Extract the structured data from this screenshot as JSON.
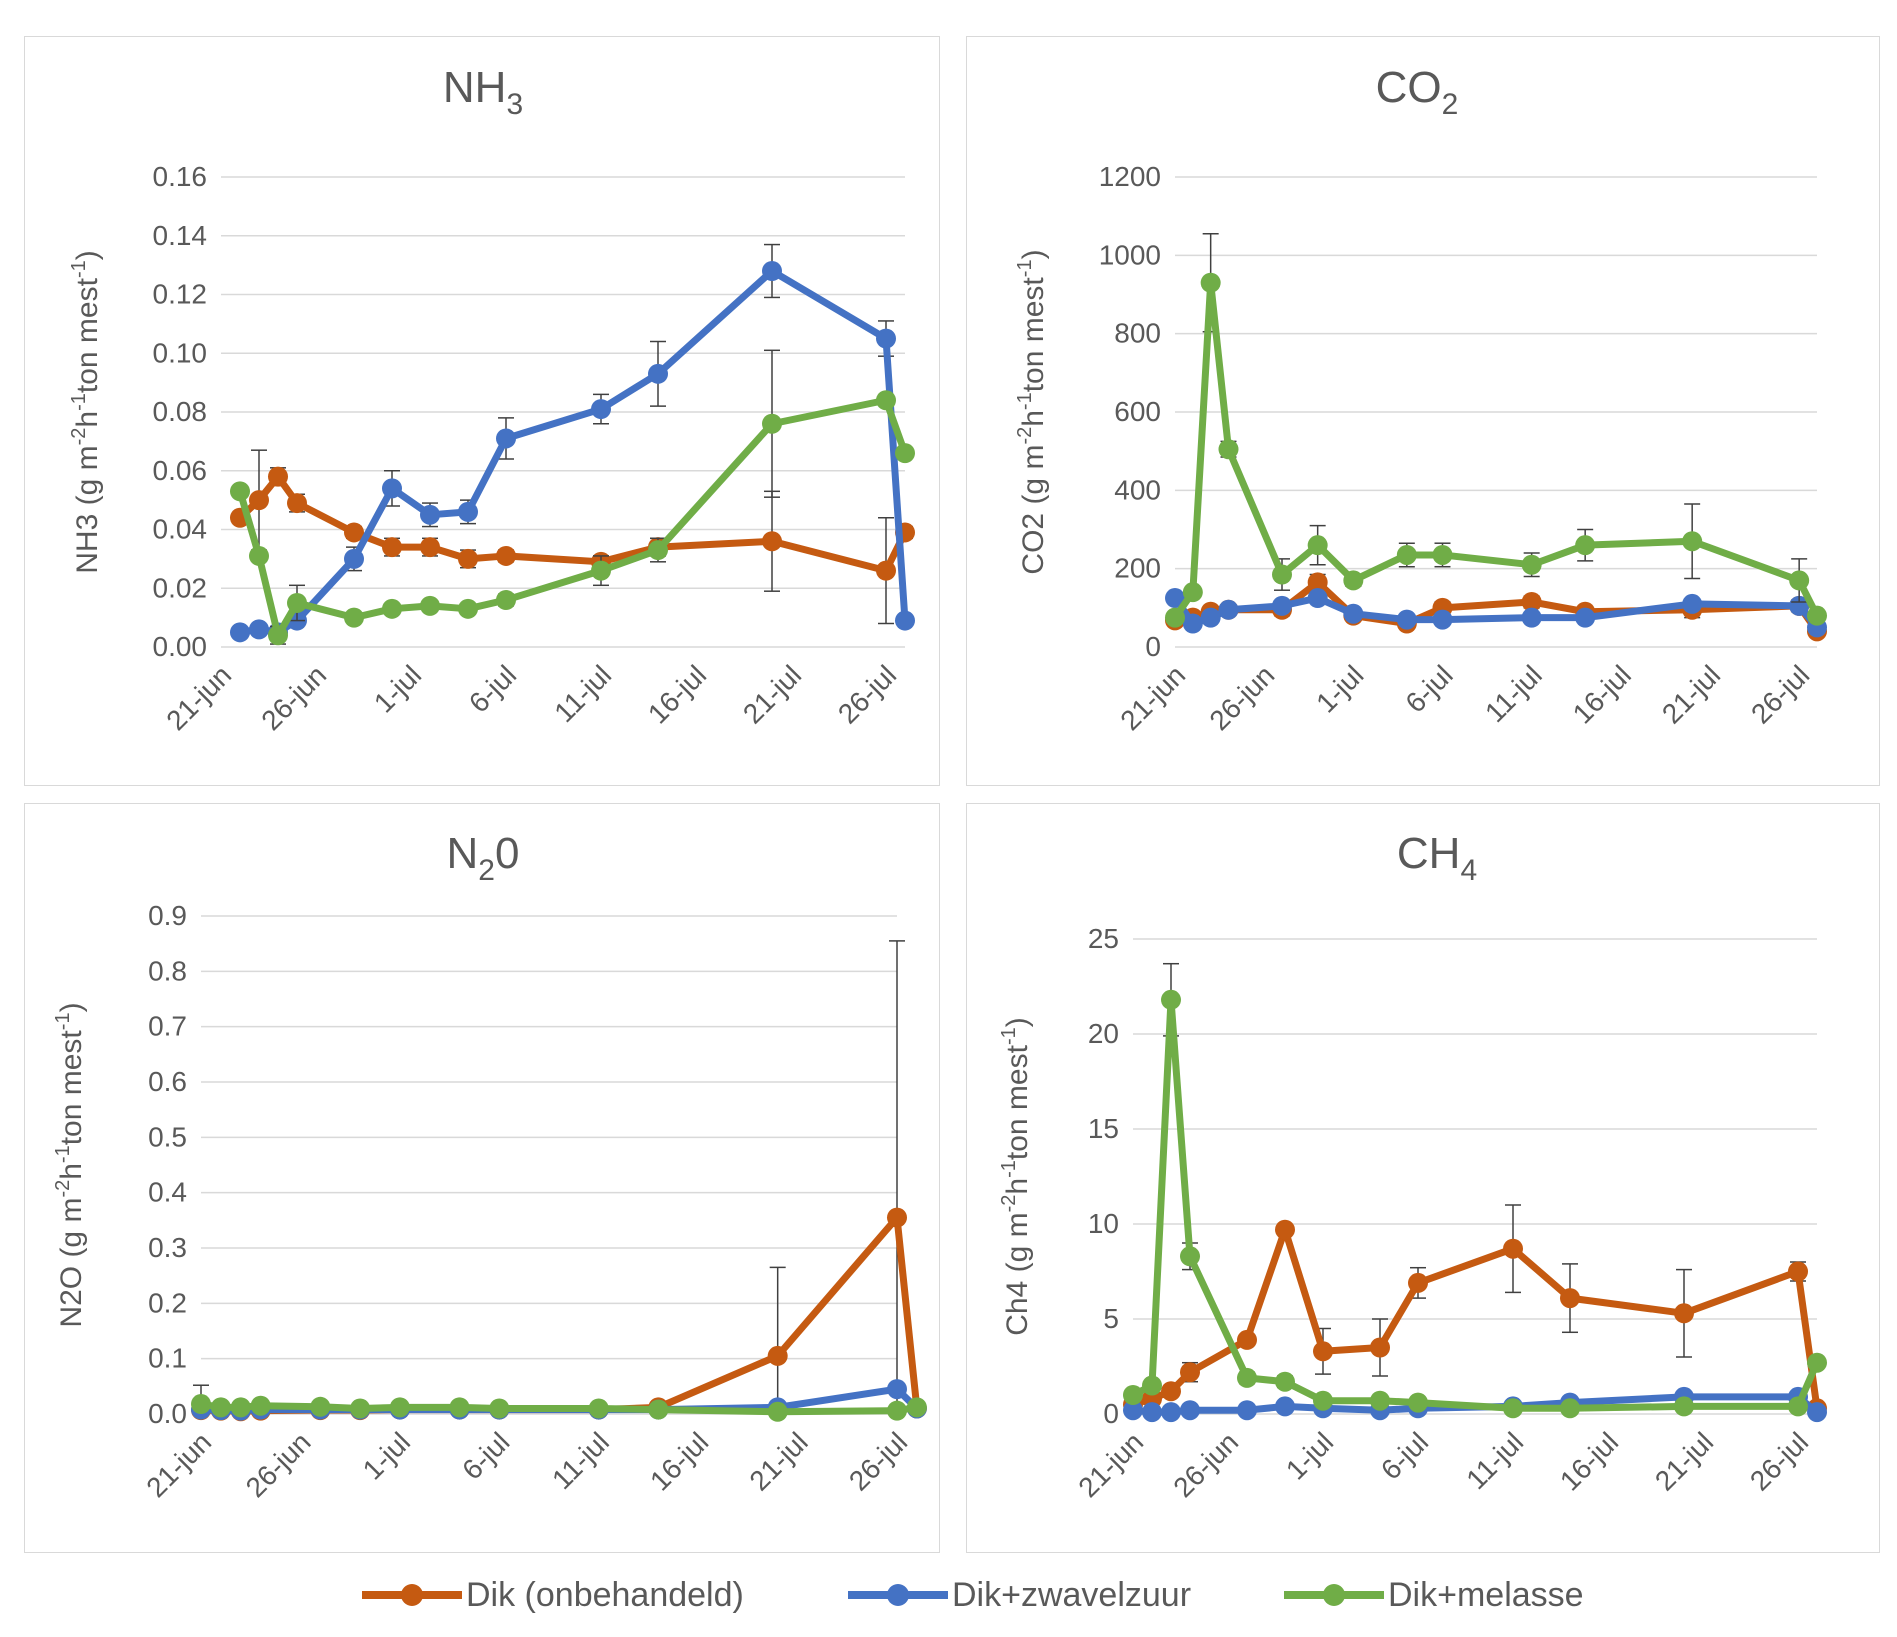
{
  "colors": {
    "orange": "#C55A11",
    "blue": "#4472C4",
    "green": "#70AD47",
    "grid": "#d9d9d9",
    "text": "#595959"
  },
  "legend": [
    {
      "name": "Dik (onbehandeld)",
      "color": "#C55A11"
    },
    {
      "name": "Dik+zwavelzuur",
      "color": "#4472C4"
    },
    {
      "name": "Dik+melasse",
      "color": "#70AD47"
    }
  ],
  "chart_data": [
    {
      "type": "line",
      "title": "NH3",
      "title_main": "NH",
      "title_sub": "3",
      "ylabel_parts": [
        "NH3 (g m",
        "-2",
        "h",
        "-1",
        "ton mest",
        "-1",
        ")"
      ],
      "xlabel": "",
      "x_ticks": [
        "21-jun",
        "26-jun",
        "1-jul",
        "6-jul",
        "11-jul",
        "16-jul",
        "21-jul",
        "26-jul"
      ],
      "x_range_days": [
        0,
        36
      ],
      "ylim": [
        0,
        0.16
      ],
      "y_ticks": [
        "0.00",
        "0.02",
        "0.04",
        "0.06",
        "0.08",
        "0.10",
        "0.12",
        "0.14",
        "0.16"
      ],
      "grid": true,
      "series": [
        {
          "name": "Dik (onbehandeld)",
          "color": "#C55A11",
          "x": [
            "22-jun",
            "23-jun",
            "24-jun",
            "25-jun",
            "28-jun",
            "30-jun",
            "2-jul",
            "4-jul",
            "6-jul",
            "11-jul",
            "14-jul",
            "20-jul",
            "26-jul",
            "27-jul"
          ],
          "y": [
            0.044,
            0.05,
            0.058,
            0.049,
            0.039,
            0.034,
            0.034,
            0.03,
            0.031,
            0.029,
            0.034,
            0.036,
            0.026,
            0.039
          ],
          "err": [
            0,
            0.017,
            0.003,
            0.003,
            0.002,
            0.003,
            0.003,
            0.003,
            0.002,
            0.002,
            0.003,
            0.017,
            0.018,
            0.002
          ]
        },
        {
          "name": "Dik+zwavelzuur",
          "color": "#4472C4",
          "x": [
            "22-jun",
            "23-jun",
            "24-jun",
            "25-jun",
            "28-jun",
            "30-jun",
            "2-jul",
            "4-jul",
            "6-jul",
            "11-jul",
            "14-jul",
            "20-jul",
            "26-jul",
            "27-jul"
          ],
          "y": [
            0.005,
            0.006,
            0.005,
            0.009,
            0.03,
            0.054,
            0.045,
            0.046,
            0.071,
            0.081,
            0.093,
            0.128,
            0.105,
            0.009
          ],
          "err": [
            0,
            0,
            0,
            0,
            0.004,
            0.006,
            0.004,
            0.004,
            0.007,
            0.005,
            0.011,
            0.009,
            0.006,
            0
          ]
        },
        {
          "name": "Dik+melasse",
          "color": "#70AD47",
          "x": [
            "22-jun",
            "23-jun",
            "24-jun",
            "25-jun",
            "28-jun",
            "30-jun",
            "2-jul",
            "4-jul",
            "6-jul",
            "11-jul",
            "14-jul",
            "20-jul",
            "26-jul",
            "27-jul"
          ],
          "y": [
            0.053,
            0.031,
            0.004,
            0.015,
            0.01,
            0.013,
            0.014,
            0.013,
            0.016,
            0.026,
            0.033,
            0.076,
            0.084,
            0.066
          ],
          "err": [
            0,
            0,
            0.003,
            0.006,
            0,
            0,
            0,
            0,
            0.002,
            0.005,
            0.004,
            0.025,
            0,
            0
          ]
        }
      ]
    },
    {
      "type": "line",
      "title": "CO2",
      "title_main": "CO",
      "title_sub": "2",
      "ylabel_parts": [
        "CO2 (g m",
        "-2",
        "h",
        "-1",
        "ton mest",
        "-1",
        ")"
      ],
      "xlabel": "",
      "x_ticks": [
        "21-jun",
        "26-jun",
        "1-jul",
        "6-jul",
        "11-jul",
        "16-jul",
        "21-jul",
        "26-jul"
      ],
      "x_range_days": [
        0,
        36
      ],
      "ylim": [
        0,
        1200
      ],
      "y_ticks": [
        "0",
        "200",
        "400",
        "600",
        "800",
        "1000",
        "1200"
      ],
      "grid": true,
      "series": [
        {
          "name": "Dik (onbehandeld)",
          "color": "#C55A11",
          "x": [
            "21-jun",
            "22-jun",
            "23-jun",
            "24-jun",
            "27-jun",
            "29-jun",
            "1-jul",
            "4-jul",
            "6-jul",
            "11-jul",
            "14-jul",
            "20-jul",
            "26-jul",
            "27-jul"
          ],
          "y": [
            68,
            75,
            90,
            95,
            95,
            165,
            80,
            60,
            100,
            115,
            90,
            95,
            105,
            40
          ],
          "err": [
            0,
            0,
            0,
            0,
            15,
            20,
            10,
            10,
            15,
            15,
            10,
            20,
            15,
            0
          ]
        },
        {
          "name": "Dik+zwavelzuur",
          "color": "#4472C4",
          "x": [
            "21-jun",
            "22-jun",
            "23-jun",
            "24-jun",
            "27-jun",
            "29-jun",
            "1-jul",
            "4-jul",
            "6-jul",
            "11-jul",
            "14-jul",
            "20-jul",
            "26-jul",
            "27-jul"
          ],
          "y": [
            125,
            60,
            75,
            95,
            105,
            125,
            85,
            70,
            70,
            75,
            75,
            110,
            105,
            50
          ],
          "err": [
            0,
            0,
            0,
            0,
            0,
            0,
            0,
            0,
            0,
            0,
            0,
            0,
            0,
            0
          ]
        },
        {
          "name": "Dik+melasse",
          "color": "#70AD47",
          "x": [
            "21-jun",
            "22-jun",
            "23-jun",
            "24-jun",
            "27-jun",
            "29-jun",
            "1-jul",
            "4-jul",
            "6-jul",
            "11-jul",
            "14-jul",
            "20-jul",
            "26-jul",
            "27-jul"
          ],
          "y": [
            75,
            140,
            930,
            505,
            185,
            260,
            170,
            235,
            235,
            210,
            260,
            270,
            170,
            80
          ],
          "err": [
            0,
            10,
            125,
            20,
            40,
            50,
            15,
            30,
            30,
            30,
            40,
            95,
            55,
            0
          ]
        }
      ]
    },
    {
      "type": "line",
      "title": "N20",
      "title_main": "N",
      "title_sub": "2",
      "title_tail": "0",
      "ylabel_parts": [
        "N2O (g m",
        "-2",
        "h",
        "-1",
        "ton mest",
        "-1",
        ")"
      ],
      "xlabel": "",
      "x_ticks": [
        "21-jun",
        "26-jun",
        "1-jul",
        "6-jul",
        "11-jul",
        "16-jul",
        "21-jul",
        "26-jul"
      ],
      "x_range_days": [
        0,
        35
      ],
      "ylim": [
        0,
        0.9
      ],
      "y_ticks": [
        "0.0",
        "0.1",
        "0.2",
        "0.3",
        "0.4",
        "0.5",
        "0.6",
        "0.7",
        "0.8",
        "0.9"
      ],
      "grid": true,
      "series": [
        {
          "name": "Dik (onbehandeld)",
          "color": "#C55A11",
          "x": [
            "21-jun",
            "22-jun",
            "23-jun",
            "24-jun",
            "27-jun",
            "29-jun",
            "1-jul",
            "4-jul",
            "6-jul",
            "11-jul",
            "14-jul",
            "20-jul",
            "26-jul",
            "27-jul"
          ],
          "y": [
            0.007,
            0.006,
            0.005,
            0.006,
            0.007,
            0.007,
            0.008,
            0.008,
            0.008,
            0.008,
            0.012,
            0.105,
            0.355,
            0.01
          ],
          "err": [
            0.045,
            0,
            0,
            0,
            0,
            0,
            0,
            0,
            0,
            0,
            0,
            0.16,
            0.5,
            0
          ]
        },
        {
          "name": "Dik+zwavelzuur",
          "color": "#4472C4",
          "x": [
            "21-jun",
            "22-jun",
            "23-jun",
            "24-jun",
            "27-jun",
            "29-jun",
            "1-jul",
            "4-jul",
            "6-jul",
            "11-jul",
            "14-jul",
            "20-jul",
            "26-jul",
            "27-jul"
          ],
          "y": [
            0.008,
            0.007,
            0.006,
            0.008,
            0.008,
            0.008,
            0.008,
            0.008,
            0.008,
            0.008,
            0.008,
            0.012,
            0.045,
            0.01
          ],
          "err": [
            0,
            0,
            0,
            0,
            0,
            0,
            0,
            0,
            0,
            0,
            0,
            0,
            0,
            0
          ]
        },
        {
          "name": "Dik+melasse",
          "color": "#70AD47",
          "x": [
            "21-jun",
            "22-jun",
            "23-jun",
            "24-jun",
            "27-jun",
            "29-jun",
            "1-jul",
            "4-jul",
            "6-jul",
            "11-jul",
            "14-jul",
            "20-jul",
            "26-jul",
            "27-jul"
          ],
          "y": [
            0.018,
            0.012,
            0.012,
            0.015,
            0.013,
            0.01,
            0.012,
            0.012,
            0.01,
            0.01,
            0.008,
            0.004,
            0.006,
            0.012
          ],
          "err": [
            0,
            0,
            0,
            0,
            0,
            0,
            0,
            0,
            0,
            0,
            0,
            0,
            0,
            0
          ]
        }
      ]
    },
    {
      "type": "line",
      "title": "CH4",
      "title_main": "CH",
      "title_sub": "4",
      "ylabel_parts": [
        "Ch4 (g m",
        "-2",
        "h",
        "-1",
        "ton mest",
        "-1",
        ")"
      ],
      "xlabel": "",
      "x_ticks": [
        "21-jun",
        "26-jun",
        "1-jul",
        "6-jul",
        "11-jul",
        "16-jul",
        "21-jul",
        "26-jul"
      ],
      "x_range_days": [
        0,
        36
      ],
      "ylim": [
        0,
        25
      ],
      "y_ticks": [
        "0",
        "5",
        "10",
        "15",
        "20",
        "25"
      ],
      "grid": true,
      "series": [
        {
          "name": "Dik (onbehandeld)",
          "color": "#C55A11",
          "x": [
            "21-jun",
            "22-jun",
            "23-jun",
            "24-jun",
            "27-jun",
            "29-jun",
            "1-jul",
            "4-jul",
            "6-jul",
            "11-jul",
            "14-jul",
            "20-jul",
            "26-jul",
            "27-jul"
          ],
          "y": [
            0.5,
            0.8,
            1.2,
            2.2,
            3.9,
            9.7,
            3.3,
            3.5,
            6.9,
            8.7,
            6.1,
            5.3,
            7.5,
            0.3
          ],
          "err": [
            0,
            0,
            0,
            0.5,
            0,
            0,
            1.2,
            1.5,
            0.8,
            2.3,
            1.8,
            2.3,
            0.5,
            0
          ]
        },
        {
          "name": "Dik+zwavelzuur",
          "color": "#4472C4",
          "x": [
            "21-jun",
            "22-jun",
            "23-jun",
            "24-jun",
            "27-jun",
            "29-jun",
            "1-jul",
            "4-jul",
            "6-jul",
            "11-jul",
            "14-jul",
            "20-jul",
            "26-jul",
            "27-jul"
          ],
          "y": [
            0.2,
            0.1,
            0.1,
            0.2,
            0.2,
            0.4,
            0.3,
            0.2,
            0.3,
            0.4,
            0.6,
            0.9,
            0.9,
            0.1
          ],
          "err": [
            0,
            0,
            0,
            0,
            0,
            0,
            0,
            0,
            0,
            0,
            0,
            0,
            0,
            0
          ]
        },
        {
          "name": "Dik+melasse",
          "color": "#70AD47",
          "x": [
            "21-jun",
            "22-jun",
            "23-jun",
            "24-jun",
            "27-jun",
            "29-jun",
            "1-jul",
            "4-jul",
            "6-jul",
            "11-jul",
            "14-jul",
            "20-jul",
            "26-jul",
            "27-jul"
          ],
          "y": [
            1.0,
            1.5,
            21.8,
            8.3,
            1.9,
            1.7,
            0.7,
            0.7,
            0.6,
            0.3,
            0.3,
            0.4,
            0.4,
            2.7
          ],
          "err": [
            0,
            0,
            1.9,
            0.7,
            0.3,
            0.3,
            0,
            0.2,
            0,
            0,
            0,
            0,
            0,
            0
          ]
        }
      ]
    }
  ]
}
